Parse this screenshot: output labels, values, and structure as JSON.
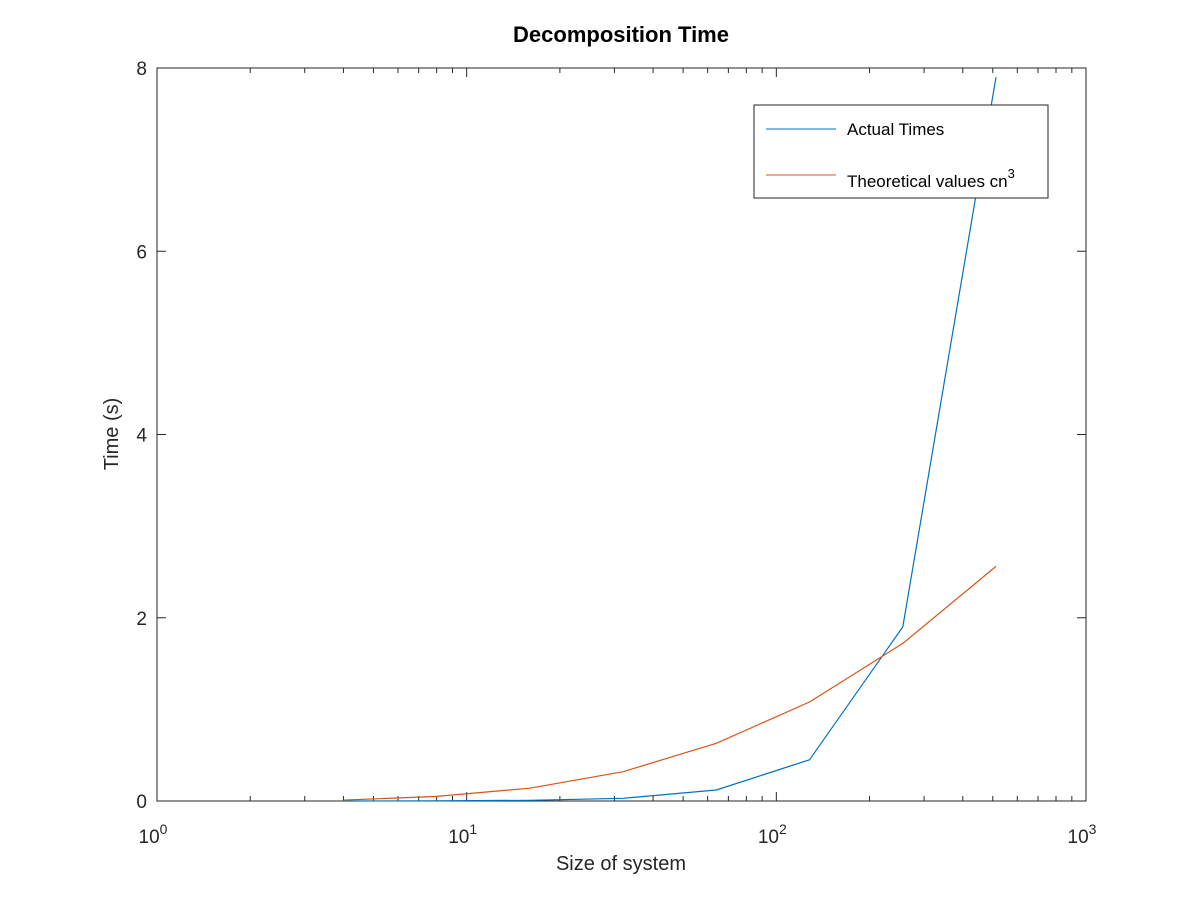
{
  "chart_data": {
    "type": "line",
    "title": "Decomposition Time",
    "xlabel": "Size of system",
    "ylabel": "Time (s)",
    "x_scale": "log",
    "xlim": [
      1,
      1000
    ],
    "ylim": [
      0,
      8
    ],
    "x_ticks": [
      {
        "value": 1,
        "base": "10",
        "exp": "0"
      },
      {
        "value": 10,
        "base": "10",
        "exp": "1"
      },
      {
        "value": 100,
        "base": "10",
        "exp": "2"
      },
      {
        "value": 1000,
        "base": "10",
        "exp": "3"
      }
    ],
    "y_ticks": [
      "0",
      "2",
      "4",
      "6",
      "8"
    ],
    "grid": false,
    "legend_position": "top-right",
    "series": [
      {
        "name": "Actual Times",
        "color": "#0072bd",
        "x": [
          4,
          8,
          16,
          32,
          64,
          128,
          256,
          512
        ],
        "y": [
          0.0005,
          0.002,
          0.008,
          0.03,
          0.12,
          0.45,
          1.9,
          7.9
        ]
      },
      {
        "name": "Theoretical values cn",
        "name_superscript": "3",
        "color": "#d95319",
        "x": [
          4,
          8,
          16,
          32,
          64,
          128,
          256,
          512
        ],
        "y": [
          0.01,
          0.05,
          0.14,
          0.32,
          0.63,
          1.08,
          1.72,
          2.56
        ]
      }
    ]
  }
}
